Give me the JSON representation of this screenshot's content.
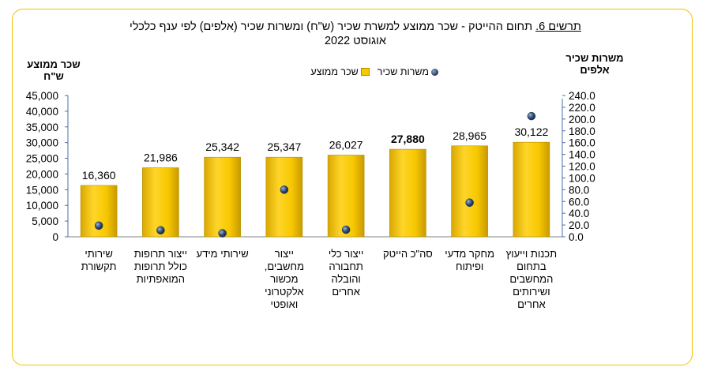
{
  "title": {
    "line1_prefix": "תרשים 6.",
    "line1_main": " תחום ההייטק -  שכר ממוצע למשרת שכיר (ש\"ח) ומשרות שכיר (אלפים) לפי ענף כלכלי",
    "line2": "אוגוסט 2022"
  },
  "left_axis_title": [
    "שכר ממוצע",
    "ש\"ח"
  ],
  "right_axis_title": [
    "משרות שכיר",
    "אלפים"
  ],
  "legend": {
    "bar_label": "שכר ממוצע",
    "dot_label": "משרות שכיר",
    "bar_color": "#f7c800",
    "dot_color": "#1f3557"
  },
  "chart_data": {
    "type": "bar",
    "categories": [
      [
        "תכנות וייעוץ",
        "בתחום",
        "המחשבים",
        "ושירותים",
        "אחרים"
      ],
      [
        "מחקר מדעי",
        "ופיתוח"
      ],
      [
        "סה\"כ הייטק"
      ],
      [
        "ייצור כלי",
        "תחבורה",
        "והובלה",
        "אחרים"
      ],
      [
        "ייצור",
        "מחשבים,",
        "מכשור",
        "אלקטרוני",
        "ואופטי"
      ],
      [
        "שירותי מידע"
      ],
      [
        "ייצור תרופות",
        "כולל תרופות",
        "המואפתיות"
      ],
      [
        "שירותי",
        "תקשורת"
      ]
    ],
    "series": [
      {
        "name": "שכר ממוצע",
        "type": "bar",
        "axis": "left",
        "values": [
          30122,
          28965,
          27880,
          26027,
          25347,
          25342,
          21986,
          16360
        ],
        "value_labels": [
          "30,122",
          "28,965",
          "27,880",
          "26,027",
          "25,347",
          "25,342",
          "21,986",
          "16,360"
        ]
      },
      {
        "name": "משרות שכיר",
        "type": "scatter",
        "axis": "right",
        "values": [
          205,
          58,
          null,
          12,
          80,
          6,
          11,
          19
        ]
      }
    ],
    "left_axis": {
      "min": 0,
      "max": 45000,
      "ticks": [
        "0",
        "5,000",
        "10,000",
        "15,000",
        "20,000",
        "25,000",
        "30,000",
        "35,000",
        "40,000",
        "45,000"
      ]
    },
    "right_axis": {
      "min": 0,
      "max": 240,
      "ticks": [
        "0.0",
        "20.0",
        "40.0",
        "60.0",
        "80.0",
        "100.0",
        "120.0",
        "140.0",
        "160.0",
        "180.0",
        "200.0",
        "220.0",
        "240.0"
      ]
    },
    "grid": false,
    "legend_position": "top-center"
  }
}
